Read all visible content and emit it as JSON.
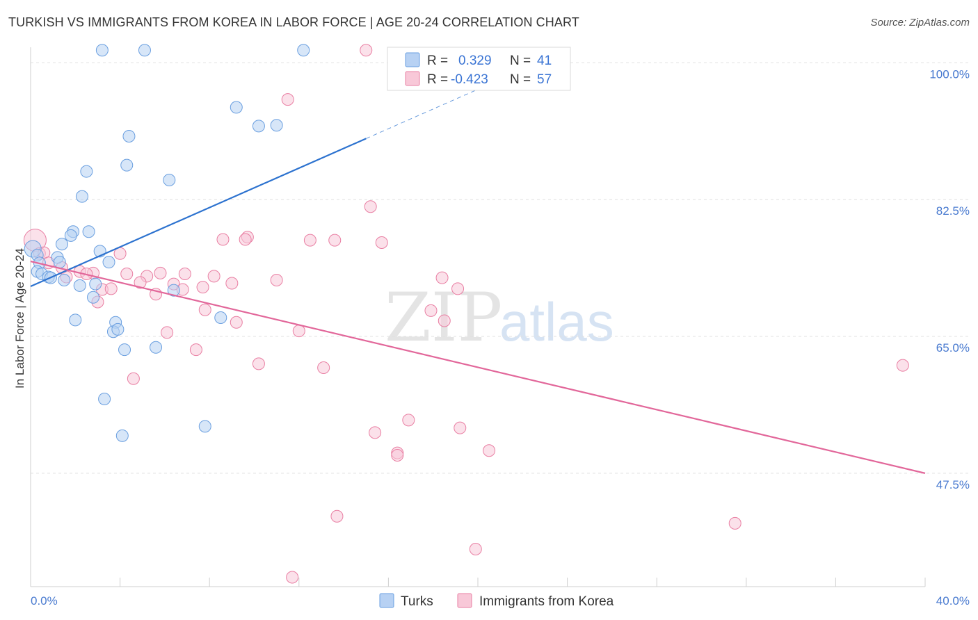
{
  "header": {
    "title": "TURKISH VS IMMIGRANTS FROM KOREA IN LABOR FORCE | AGE 20-24 CORRELATION CHART",
    "source": "Source: ZipAtlas.com"
  },
  "watermark": {
    "zip": "ZIP",
    "atlas": "atlas"
  },
  "colors": {
    "turks": "#6a9fe0",
    "turks_fill": "#b7d1f3",
    "turks_line": "#2c72cf",
    "korea": "#e97fa3",
    "korea_fill": "#f8c8d8",
    "korea_line": "#e2679a",
    "tick": "#4a7bd0"
  },
  "legend_box": {
    "turks": {
      "r_label": "R =",
      "r_value": "0.329",
      "n_label": "N =",
      "n_value": "41"
    },
    "korea": {
      "r_label": "R =",
      "r_value": "-0.423",
      "n_label": "N =",
      "n_value": "57"
    }
  },
  "chart_data": {
    "type": "scatter",
    "title": "TURKISH VS IMMIGRANTS FROM KOREA IN LABOR FORCE | AGE 20-24 CORRELATION CHART",
    "xlabel": "",
    "ylabel": "In Labor Force | Age 20-24",
    "xlim": [
      0,
      40
    ],
    "ylim": [
      33,
      101
    ],
    "x_tick_labels": [
      "0.0%",
      "40.0%"
    ],
    "y_ticks": [
      47.5,
      65.0,
      82.5,
      100.0
    ],
    "y_tick_labels": [
      "47.5%",
      "65.0%",
      "82.5%",
      "100.0%"
    ],
    "grid": true,
    "legend": [
      "Turks",
      "Immigrants from Korea"
    ],
    "series": [
      {
        "name": "Turks",
        "R": 0.329,
        "N": 41,
        "trend": {
          "x0": 0.0,
          "y0": 71.4,
          "x1_solid": 15.0,
          "y1_solid": 90.3,
          "x1_dashed": 20.0,
          "y1_dashed": 96.6
        },
        "points": [
          [
            3.2,
            101.6
          ],
          [
            5.1,
            101.6
          ],
          [
            12.2,
            101.6
          ],
          [
            9.2,
            94.3
          ],
          [
            10.2,
            91.9
          ],
          [
            11.0,
            92.0
          ],
          [
            4.4,
            90.6
          ],
          [
            4.3,
            86.9
          ],
          [
            2.5,
            86.1
          ],
          [
            6.2,
            85.0
          ],
          [
            2.3,
            82.9
          ],
          [
            2.6,
            78.4
          ],
          [
            1.9,
            78.4
          ],
          [
            1.8,
            77.9
          ],
          [
            1.4,
            76.8
          ],
          [
            3.1,
            75.9
          ],
          [
            0.1,
            76.2
          ],
          [
            0.3,
            75.4
          ],
          [
            1.2,
            75.1
          ],
          [
            1.3,
            74.5
          ],
          [
            0.4,
            74.4
          ],
          [
            3.5,
            74.5
          ],
          [
            0.3,
            73.3
          ],
          [
            0.5,
            73.0
          ],
          [
            0.8,
            72.6
          ],
          [
            0.9,
            72.5
          ],
          [
            1.5,
            72.2
          ],
          [
            2.2,
            71.5
          ],
          [
            2.9,
            71.7
          ],
          [
            6.4,
            70.9
          ],
          [
            2.8,
            70.0
          ],
          [
            8.5,
            67.4
          ],
          [
            2.0,
            67.1
          ],
          [
            3.8,
            66.8
          ],
          [
            3.7,
            65.6
          ],
          [
            3.9,
            65.9
          ],
          [
            5.6,
            63.6
          ],
          [
            4.2,
            63.3
          ],
          [
            3.3,
            57.0
          ],
          [
            7.8,
            53.5
          ],
          [
            4.1,
            52.3
          ]
        ]
      },
      {
        "name": "Immigrants from Korea",
        "R": -0.423,
        "N": 57,
        "trend": {
          "x0": 0.0,
          "y0": 74.6,
          "x1": 40.0,
          "y1": 47.5
        },
        "points": [
          [
            15.0,
            101.6
          ],
          [
            11.5,
            95.3
          ],
          [
            15.2,
            81.6
          ],
          [
            9.7,
            77.7
          ],
          [
            9.6,
            77.4
          ],
          [
            8.6,
            77.4
          ],
          [
            12.5,
            77.3
          ],
          [
            13.6,
            77.3
          ],
          [
            15.7,
            77.0
          ],
          [
            0.2,
            77.3
          ],
          [
            0.4,
            75.6
          ],
          [
            0.6,
            75.7
          ],
          [
            4.0,
            75.6
          ],
          [
            0.8,
            74.4
          ],
          [
            1.4,
            73.8
          ],
          [
            2.2,
            73.3
          ],
          [
            2.8,
            73.1
          ],
          [
            2.5,
            73.0
          ],
          [
            4.3,
            73.0
          ],
          [
            5.8,
            73.1
          ],
          [
            6.9,
            73.0
          ],
          [
            5.2,
            72.7
          ],
          [
            8.2,
            72.7
          ],
          [
            1.6,
            72.6
          ],
          [
            11.0,
            72.2
          ],
          [
            18.4,
            72.5
          ],
          [
            4.9,
            71.9
          ],
          [
            9.0,
            71.8
          ],
          [
            6.4,
            71.7
          ],
          [
            3.2,
            71.0
          ],
          [
            3.6,
            71.1
          ],
          [
            7.7,
            71.3
          ],
          [
            6.8,
            71.0
          ],
          [
            19.1,
            71.1
          ],
          [
            5.6,
            70.4
          ],
          [
            3.0,
            69.4
          ],
          [
            7.8,
            68.4
          ],
          [
            17.9,
            68.3
          ],
          [
            18.5,
            67.0
          ],
          [
            9.2,
            66.8
          ],
          [
            12.0,
            65.7
          ],
          [
            6.1,
            65.5
          ],
          [
            7.4,
            63.3
          ],
          [
            10.2,
            61.5
          ],
          [
            13.1,
            61.0
          ],
          [
            39.0,
            61.3
          ],
          [
            4.6,
            59.6
          ],
          [
            16.9,
            54.3
          ],
          [
            15.4,
            52.7
          ],
          [
            19.2,
            53.3
          ],
          [
            16.4,
            50.1
          ],
          [
            16.4,
            49.8
          ],
          [
            20.5,
            50.4
          ],
          [
            13.7,
            42.0
          ],
          [
            31.5,
            41.1
          ],
          [
            19.9,
            37.8
          ],
          [
            11.7,
            34.2
          ]
        ]
      }
    ]
  },
  "legend_bottom": {
    "turks_label": "Turks",
    "korea_label": "Immigrants from Korea"
  }
}
